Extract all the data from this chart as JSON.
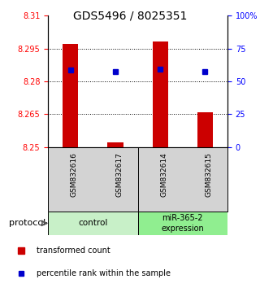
{
  "title": "GDS5496 / 8025351",
  "samples": [
    "GSM832616",
    "GSM832617",
    "GSM832614",
    "GSM832615"
  ],
  "red_values": [
    8.2972,
    8.2522,
    8.2983,
    8.266
  ],
  "blue_values": [
    8.2853,
    8.2845,
    8.2855,
    8.2843
  ],
  "y_min": 8.25,
  "y_max": 8.31,
  "y_ticks_left": [
    8.25,
    8.265,
    8.28,
    8.295,
    8.31
  ],
  "y_ticks_right": [
    0,
    25,
    50,
    75,
    100
  ],
  "bar_color": "#cc0000",
  "blue_color": "#0000cc",
  "bar_width": 0.35,
  "background_color": "#ffffff",
  "label_bg": "#d3d3d3",
  "ctrl_color": "#c8f0c8",
  "mir_color": "#90ee90",
  "ctrl_label": "control",
  "mir_label": "miR-365-2\nexpression",
  "legend_red": "transformed count",
  "legend_blue": "percentile rank within the sample",
  "protocol_label": "protocol"
}
